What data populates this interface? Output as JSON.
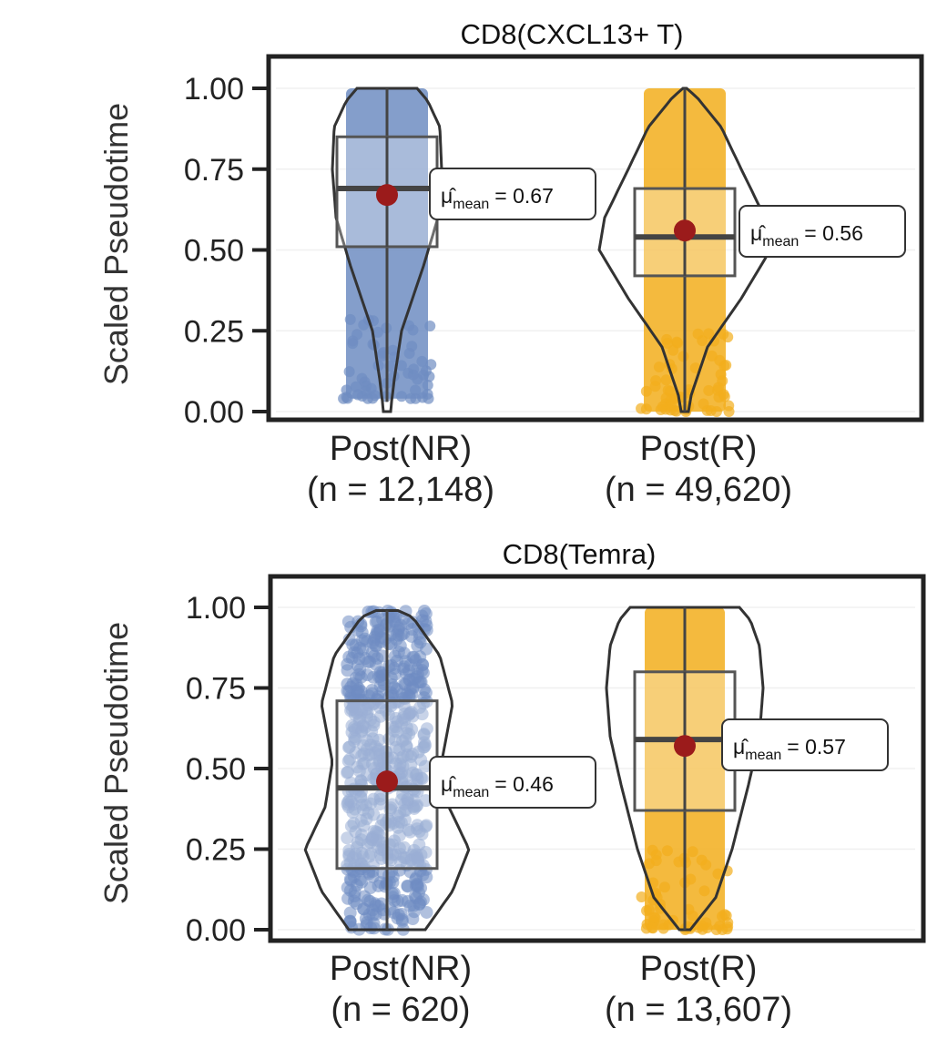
{
  "chart_data": [
    {
      "type": "violin",
      "title": "CD8(CXCL13+ T)",
      "ylabel": "Scaled Pseudotime",
      "ylim": [
        0,
        1
      ],
      "yticks": [
        "0.00",
        "0.25",
        "0.50",
        "0.75",
        "1.00"
      ],
      "colors": [
        "#6f8dc2",
        "#f2ae1c"
      ],
      "groups": [
        {
          "label": "Post(NR)",
          "n_label": "(n = 12,148)",
          "points_min": 0.04,
          "points_max": 1.0,
          "q1": 0.51,
          "median": 0.69,
          "q3": 0.85,
          "whisker_low": 0.03,
          "whisker_high": 1.0,
          "mean": 0.67,
          "annotation": {
            "mu": "μ̂",
            "sub": "mean",
            "eq": "= 0.67"
          }
        },
        {
          "label": "Post(R)",
          "n_label": "(n = 49,620)",
          "points_min": 0.0,
          "points_max": 1.0,
          "q1": 0.42,
          "median": 0.54,
          "q3": 0.69,
          "whisker_low": 0.0,
          "whisker_high": 1.0,
          "mean": 0.56,
          "annotation": {
            "mu": "μ̂",
            "sub": "mean",
            "eq": "= 0.56"
          }
        }
      ]
    },
    {
      "type": "violin",
      "title": "CD8(Temra)",
      "ylabel": "Scaled Pseudotime",
      "ylim": [
        0,
        1
      ],
      "yticks": [
        "0.00",
        "0.25",
        "0.50",
        "0.75",
        "1.00"
      ],
      "colors": [
        "#6f8dc2",
        "#f2ae1c"
      ],
      "groups": [
        {
          "label": "Post(NR)",
          "n_label": "(n = 620)",
          "points_min": 0.0,
          "points_max": 0.99,
          "q1": 0.19,
          "median": 0.44,
          "q3": 0.71,
          "whisker_low": 0.0,
          "whisker_high": 0.99,
          "mean": 0.46,
          "annotation": {
            "mu": "μ̂",
            "sub": "mean",
            "eq": "= 0.46"
          }
        },
        {
          "label": "Post(R)",
          "n_label": "(n = 13,607)",
          "points_min": 0.0,
          "points_max": 1.0,
          "q1": 0.37,
          "median": 0.59,
          "q3": 0.8,
          "whisker_low": 0.0,
          "whisker_high": 1.0,
          "mean": 0.57,
          "annotation": {
            "mu": "μ̂",
            "sub": "mean",
            "eq": "= 0.57"
          }
        }
      ]
    }
  ]
}
